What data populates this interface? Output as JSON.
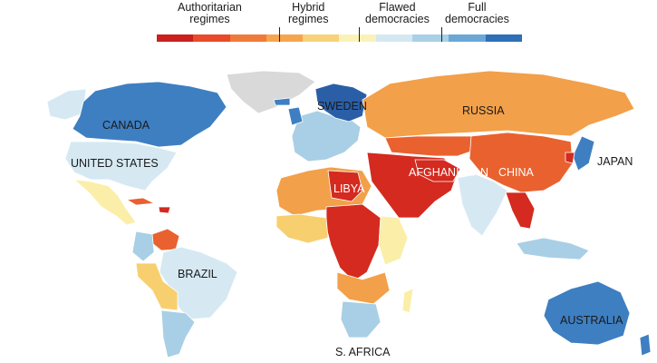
{
  "legend": {
    "categories": [
      {
        "label_line1": "Authoritarian",
        "label_line2": "regimes"
      },
      {
        "label_line1": "Hybrid",
        "label_line2": "regimes"
      },
      {
        "label_line1": "Flawed",
        "label_line2": "democracies"
      },
      {
        "label_line1": "Full",
        "label_line2": "democracies"
      }
    ],
    "scale_colors": [
      "#cc1f1f",
      "#e84a2a",
      "#f07a3a",
      "#f5a54e",
      "#f8d27a",
      "#fbf2b8",
      "#d4e8f2",
      "#a9d0e6",
      "#6aa7d6",
      "#2f6fb6"
    ]
  },
  "labels": {
    "canada": "CANADA",
    "united_states": "UNITED STATES",
    "sweden": "SWEDEN",
    "russia": "RUSSIA",
    "japan": "JAPAN",
    "afghanistan": "AFGHANISTAN",
    "china": "CHINA",
    "libya": "LIBYA",
    "brazil": "BRAZIL",
    "australia": "AUSTRALIA",
    "south_africa": "S. AFRICA"
  },
  "colors": {
    "full_democracy": "#3e7fc1",
    "full_democracy_dark": "#2a5fa8",
    "flawed_democracy_light": "#d6e9f3",
    "flawed_democracy": "#a8cfe5",
    "hybrid_light": "#fbeea8",
    "hybrid": "#f8cf6e",
    "authoritarian_mild": "#f2a04a",
    "authoritarian": "#e9612f",
    "authoritarian_severe": "#d42a1f",
    "no_data": "#d9d9d9"
  }
}
